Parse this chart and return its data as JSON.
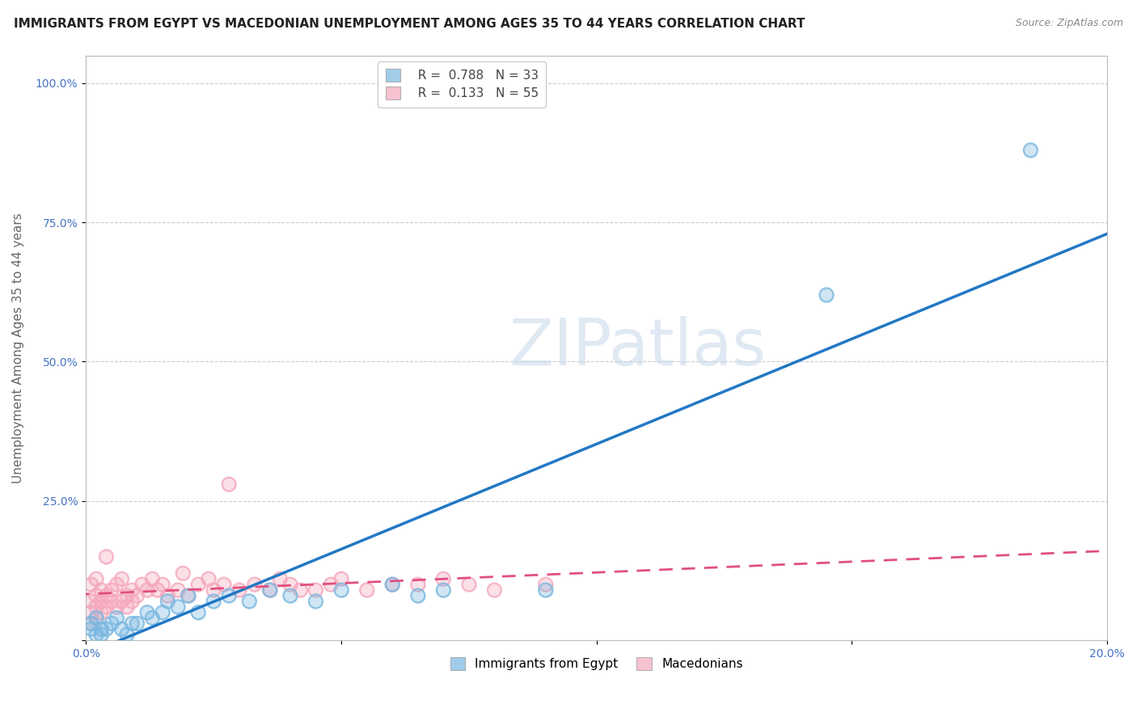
{
  "title": "IMMIGRANTS FROM EGYPT VS MACEDONIAN UNEMPLOYMENT AMONG AGES 35 TO 44 YEARS CORRELATION CHART",
  "source": "Source: ZipAtlas.com",
  "ylabel": "Unemployment Among Ages 35 to 44 years",
  "xlim": [
    0.0,
    0.2
  ],
  "ylim": [
    0.0,
    1.05
  ],
  "xticks": [
    0.0,
    0.05,
    0.1,
    0.15,
    0.2
  ],
  "xtick_labels": [
    "0.0%",
    "",
    "",
    "",
    "20.0%"
  ],
  "ytick_positions": [
    0.0,
    0.25,
    0.5,
    0.75,
    1.0
  ],
  "ytick_labels": [
    "",
    "25.0%",
    "50.0%",
    "75.0%",
    "100.0%"
  ],
  "watermark": "ZIPatlas",
  "blue_R": 0.788,
  "blue_N": 33,
  "pink_R": 0.133,
  "pink_N": 55,
  "blue_color": "#7ab8e0",
  "pink_color": "#f5a8bc",
  "blue_line_color": "#2178c4",
  "pink_line_color": "#e05080",
  "legend_blue_label": "Immigrants from Egypt",
  "legend_pink_label": "Macedonians",
  "blue_scatter_x": [
    0.001,
    0.001,
    0.002,
    0.002,
    0.003,
    0.003,
    0.004,
    0.005,
    0.006,
    0.007,
    0.008,
    0.009,
    0.01,
    0.012,
    0.013,
    0.015,
    0.016,
    0.018,
    0.02,
    0.022,
    0.025,
    0.028,
    0.032,
    0.036,
    0.04,
    0.045,
    0.05,
    0.06,
    0.065,
    0.07,
    0.09,
    0.145,
    0.185
  ],
  "blue_scatter_y": [
    0.02,
    0.03,
    0.01,
    0.04,
    0.01,
    0.02,
    0.02,
    0.03,
    0.04,
    0.02,
    0.01,
    0.03,
    0.03,
    0.05,
    0.04,
    0.05,
    0.07,
    0.06,
    0.08,
    0.05,
    0.07,
    0.08,
    0.07,
    0.09,
    0.08,
    0.07,
    0.09,
    0.1,
    0.08,
    0.09,
    0.09,
    0.62,
    0.88
  ],
  "pink_scatter_x": [
    0.001,
    0.001,
    0.001,
    0.001,
    0.002,
    0.002,
    0.002,
    0.002,
    0.003,
    0.003,
    0.003,
    0.004,
    0.004,
    0.004,
    0.005,
    0.005,
    0.006,
    0.006,
    0.007,
    0.007,
    0.008,
    0.008,
    0.009,
    0.009,
    0.01,
    0.011,
    0.012,
    0.013,
    0.014,
    0.015,
    0.016,
    0.018,
    0.019,
    0.02,
    0.022,
    0.024,
    0.025,
    0.027,
    0.028,
    0.03,
    0.033,
    0.036,
    0.038,
    0.04,
    0.042,
    0.045,
    0.048,
    0.05,
    0.055,
    0.06,
    0.065,
    0.07,
    0.075,
    0.08,
    0.09
  ],
  "pink_scatter_y": [
    0.03,
    0.05,
    0.07,
    0.1,
    0.04,
    0.06,
    0.08,
    0.11,
    0.05,
    0.07,
    0.09,
    0.06,
    0.08,
    0.15,
    0.07,
    0.09,
    0.06,
    0.1,
    0.07,
    0.11,
    0.06,
    0.08,
    0.07,
    0.09,
    0.08,
    0.1,
    0.09,
    0.11,
    0.09,
    0.1,
    0.08,
    0.09,
    0.12,
    0.08,
    0.1,
    0.11,
    0.09,
    0.1,
    0.28,
    0.09,
    0.1,
    0.09,
    0.11,
    0.1,
    0.09,
    0.09,
    0.1,
    0.11,
    0.09,
    0.1,
    0.1,
    0.11,
    0.1,
    0.09,
    0.1
  ],
  "grid_color": "#cccccc",
  "bg_color": "#ffffff",
  "title_fontsize": 11,
  "axis_label_fontsize": 11,
  "tick_fontsize": 10,
  "legend_fontsize": 11
}
